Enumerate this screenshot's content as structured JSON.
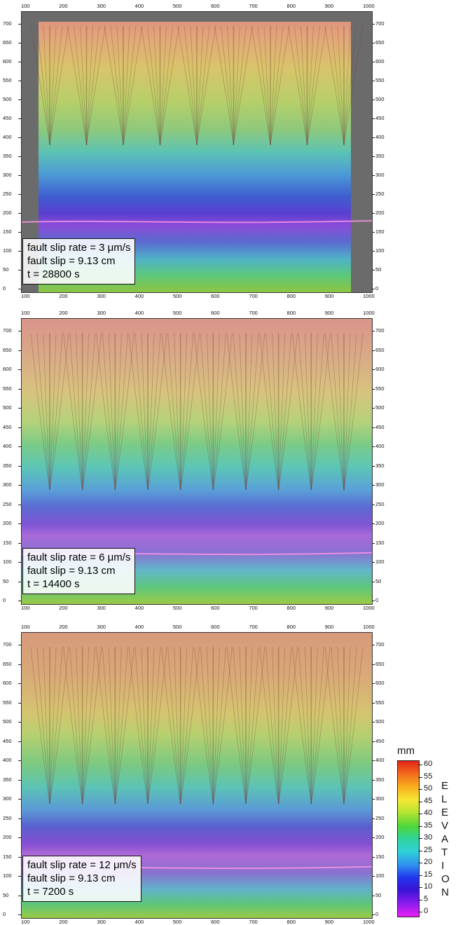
{
  "panels": [
    {
      "slip_rate_line": "fault slip rate = 3 μm/s",
      "slip_line": "fault slip = 9.13 cm",
      "time_line": "t = 28800 s"
    },
    {
      "slip_rate_line": "fault slip rate = 6 μm/s",
      "slip_line": "fault slip = 9.13 cm",
      "time_line": "t = 14400 s"
    },
    {
      "slip_rate_line": "fault slip rate = 12 μm/s",
      "slip_line": "fault slip = 9.13 cm",
      "time_line": "t = 7200 s"
    }
  ],
  "x_ticks": [
    "100",
    "200",
    "300",
    "400",
    "500",
    "600",
    "700",
    "800",
    "900",
    "1000"
  ],
  "y_ticks": [
    "0",
    "50",
    "100",
    "150",
    "200",
    "250",
    "300",
    "350",
    "400",
    "450",
    "500",
    "550",
    "600",
    "650",
    "700"
  ],
  "colorbar": {
    "unit": "mm",
    "ticks": [
      "60",
      "55",
      "50",
      "45",
      "40",
      "35",
      "30",
      "25",
      "20",
      "15",
      "10",
      "5",
      "0"
    ],
    "title_letters": [
      "E",
      "L",
      "E",
      "V",
      "A",
      "T",
      "I",
      "O",
      "N"
    ]
  }
}
